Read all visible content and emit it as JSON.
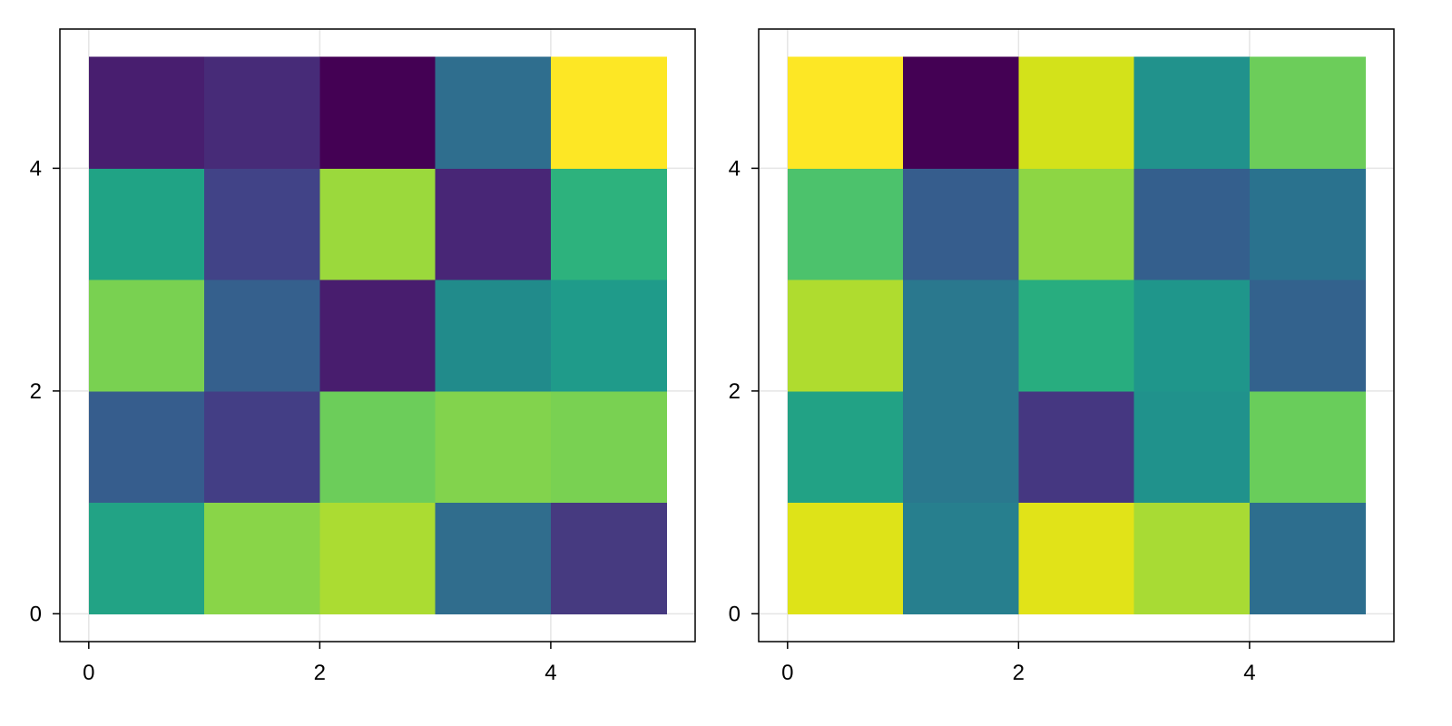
{
  "chart_data": [
    {
      "type": "heatmap",
      "title": "",
      "xlabel": "",
      "ylabel": "",
      "xlim": [
        -0.25,
        5.25
      ],
      "ylim": [
        -0.25,
        5.25
      ],
      "xticks": [
        0,
        2,
        4
      ],
      "yticks": [
        0,
        2,
        4
      ],
      "x_edges": [
        0,
        1,
        2,
        3,
        4,
        5
      ],
      "y_edges": [
        0,
        1,
        2,
        3,
        4,
        5
      ],
      "grid": true,
      "colormap": "viridis",
      "colorbar": false,
      "cell_colors": [
        [
          "#22a385",
          "#89d548",
          "#abdc32",
          "#306d8d",
          "#463a80"
        ],
        [
          "#365d8d",
          "#433e85",
          "#6ccd5a",
          "#82d34d",
          "#79d152"
        ],
        [
          "#79d151",
          "#35608d",
          "#481d6e",
          "#218b8b",
          "#1f9b8a"
        ],
        [
          "#20a385",
          "#414387",
          "#9bd93c",
          "#482676",
          "#2db27d"
        ],
        [
          "#481e6f",
          "#472b78",
          "#440154",
          "#2f6e8e",
          "#fde725"
        ]
      ]
    },
    {
      "type": "heatmap",
      "title": "",
      "xlabel": "",
      "ylabel": "",
      "xlim": [
        -0.25,
        5.25
      ],
      "ylim": [
        -0.25,
        5.25
      ],
      "xticks": [
        0,
        2,
        4
      ],
      "yticks": [
        0,
        2,
        4
      ],
      "x_edges": [
        0,
        1,
        2,
        3,
        4,
        5
      ],
      "y_edges": [
        0,
        1,
        2,
        3,
        4,
        5
      ],
      "grid": true,
      "colormap": "viridis",
      "colorbar": false,
      "cell_colors": [
        [
          "#dee318",
          "#277f8e",
          "#e1e318",
          "#a8db34",
          "#2d6e8e"
        ],
        [
          "#22a285",
          "#2a788e",
          "#453781",
          "#20928c",
          "#69cd5b"
        ],
        [
          "#afdc2f",
          "#2a788e",
          "#28ad7f",
          "#1f968b",
          "#33628d"
        ],
        [
          "#4cc26c",
          "#365d8d",
          "#8dd644",
          "#345f8d",
          "#2a728e"
        ],
        [
          "#fde725",
          "#440154",
          "#d3e21a",
          "#21928c",
          "#6ccd5a"
        ]
      ]
    }
  ]
}
